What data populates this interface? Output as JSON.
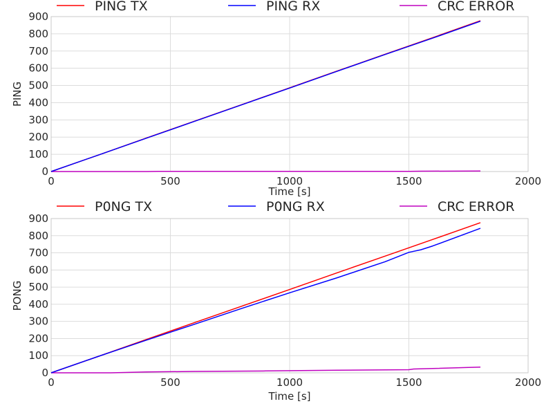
{
  "chart_data": [
    {
      "type": "line",
      "xlabel": "Time [s]",
      "ylabel": "PING",
      "xlim": [
        0,
        2000
      ],
      "ylim": [
        0,
        900
      ],
      "xticks": [
        0,
        500,
        1000,
        1500,
        2000
      ],
      "yticks": [
        0,
        100,
        200,
        300,
        400,
        500,
        600,
        700,
        800,
        900
      ],
      "grid": true,
      "legend_position": "top",
      "series": [
        {
          "name": "PING TX",
          "color": "#ff0000",
          "x": [
            0,
            200,
            400,
            600,
            800,
            1000,
            1200,
            1400,
            1600,
            1800
          ],
          "y": [
            0,
            97,
            195,
            292,
            389,
            486,
            584,
            681,
            778,
            876
          ]
        },
        {
          "name": "PING RX",
          "color": "#0000ff",
          "x": [
            0,
            200,
            400,
            600,
            800,
            1000,
            1200,
            1400,
            1600,
            1800
          ],
          "y": [
            0,
            97,
            194,
            291,
            388,
            485,
            583,
            680,
            775,
            873
          ]
        },
        {
          "name": "CRC ERROR",
          "color": "#bf00bf",
          "x": [
            0,
            200,
            400,
            450,
            800,
            1200,
            1500,
            1550,
            1800
          ],
          "y": [
            0,
            0,
            0,
            1,
            1,
            1,
            1,
            2,
            3
          ]
        }
      ]
    },
    {
      "type": "line",
      "xlabel": "Time [s]",
      "ylabel": "PONG",
      "xlim": [
        0,
        2000
      ],
      "ylim": [
        0,
        900
      ],
      "xticks": [
        0,
        500,
        1000,
        1500,
        2000
      ],
      "yticks": [
        0,
        100,
        200,
        300,
        400,
        500,
        600,
        700,
        800,
        900
      ],
      "grid": true,
      "legend_position": "top",
      "series": [
        {
          "name": "P0NG TX",
          "color": "#ff0000",
          "x": [
            0,
            200,
            400,
            600,
            800,
            1000,
            1200,
            1400,
            1600,
            1800
          ],
          "y": [
            0,
            97,
            195,
            292,
            389,
            486,
            584,
            681,
            778,
            876
          ]
        },
        {
          "name": "P0NG RX",
          "color": "#0000ff",
          "x": [
            0,
            200,
            400,
            600,
            800,
            1000,
            1200,
            1400,
            1500,
            1550,
            1600,
            1800
          ],
          "y": [
            0,
            97,
            191,
            283,
            376,
            467,
            555,
            648,
            703,
            718,
            740,
            843
          ]
        },
        {
          "name": "CRC ERROR",
          "color": "#bf00bf",
          "x": [
            0,
            250,
            400,
            600,
            900,
            1200,
            1500,
            1520,
            1600,
            1800
          ],
          "y": [
            0,
            0,
            5,
            8,
            11,
            15,
            18,
            22,
            25,
            33
          ]
        }
      ]
    }
  ]
}
